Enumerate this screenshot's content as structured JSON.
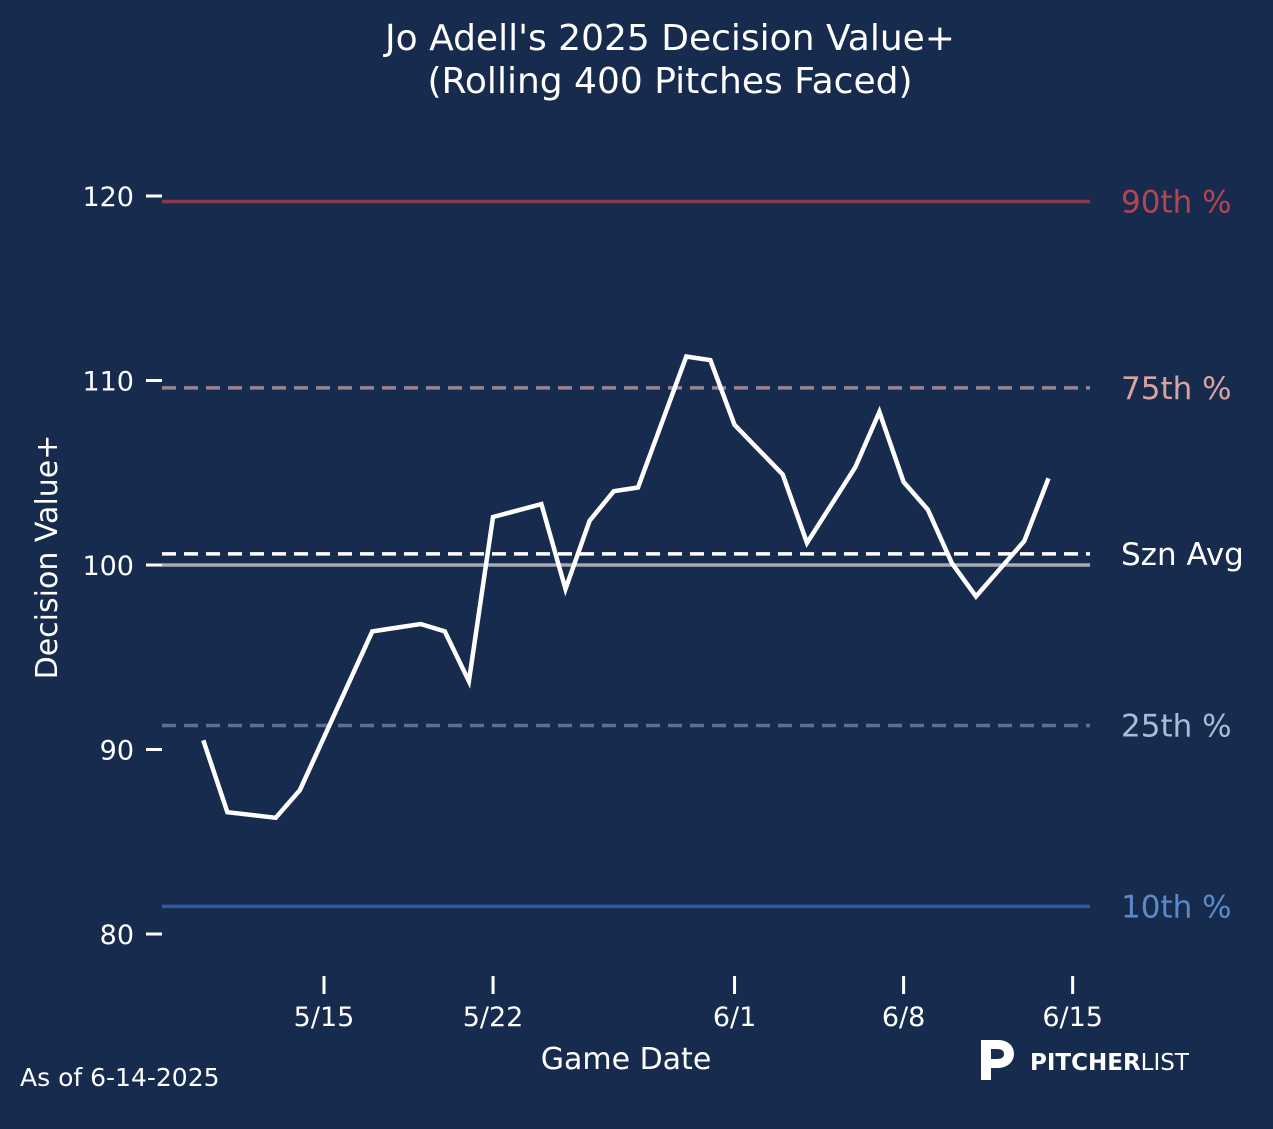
{
  "colors": {
    "background": "#172b4f",
    "line": "#ffffff",
    "p90": "#8c3a4a",
    "p90_label": "#b5444f",
    "p75": "#9a8590",
    "p75_label": "#d9a3a0",
    "p25": "#5c6f92",
    "p25_label": "#a9bbd6",
    "p10": "#2f5b9e",
    "p10_label": "#5b8ac7",
    "baseline": "#a5aab4",
    "szn_avg": "#ffffff"
  },
  "footer": {
    "as_of": "As of 6-14-2025",
    "logo_text_bold": "PITCHER",
    "logo_text_light": "LIST",
    "logo_mark_icon": "pitcherlist-p-icon"
  },
  "chart_data": {
    "type": "line",
    "title": "Jo Adell's 2025 Decision Value+",
    "subtitle": "(Rolling 400 Pitches Faced)",
    "xlabel": "Game Date",
    "ylabel": "Decision Value+",
    "ylim": [
      78,
      122
    ],
    "xlim": [
      "2025-05-08",
      "2025-06-15"
    ],
    "grid": false,
    "yticks": [
      80,
      90,
      100,
      110,
      120
    ],
    "xticks": [
      {
        "date": "2025-05-15",
        "label": "5/15"
      },
      {
        "date": "2025-05-22",
        "label": "5/22"
      },
      {
        "date": "2025-06-01",
        "label": "6/1"
      },
      {
        "date": "2025-06-08",
        "label": "6/8"
      },
      {
        "date": "2025-06-15",
        "label": "6/15"
      }
    ],
    "reference_lines": [
      {
        "label": "90th %",
        "value": 119.7,
        "style": "solid",
        "color_key": "p90",
        "label_color_key": "p90_label"
      },
      {
        "label": "75th %",
        "value": 109.6,
        "style": "dashed",
        "color_key": "p75",
        "label_color_key": "p75_label"
      },
      {
        "label": "Szn Avg",
        "value": 100.6,
        "style": "dashed",
        "color_key": "szn_avg",
        "label_color_key": "szn_avg"
      },
      {
        "label": "",
        "value": 100.0,
        "style": "solid",
        "color_key": "baseline",
        "label_color_key": "baseline"
      },
      {
        "label": "25th %",
        "value": 91.3,
        "style": "dashed",
        "color_key": "p25",
        "label_color_key": "p25_label"
      },
      {
        "label": "10th %",
        "value": 81.5,
        "style": "solid",
        "color_key": "p10",
        "label_color_key": "p10_label"
      }
    ],
    "series": [
      {
        "name": "",
        "points": [
          {
            "x": "2025-05-10",
            "y": 90.5
          },
          {
            "x": "2025-05-11",
            "y": 86.6
          },
          {
            "x": "2025-05-13",
            "y": 86.3
          },
          {
            "x": "2025-05-14",
            "y": 87.8
          },
          {
            "x": "2025-05-17",
            "y": 96.4
          },
          {
            "x": "2025-05-19",
            "y": 96.8
          },
          {
            "x": "2025-05-20",
            "y": 96.4
          },
          {
            "x": "2025-05-21",
            "y": 93.7
          },
          {
            "x": "2025-05-22",
            "y": 102.6
          },
          {
            "x": "2025-05-24",
            "y": 103.3
          },
          {
            "x": "2025-05-25",
            "y": 98.7
          },
          {
            "x": "2025-05-26",
            "y": 102.4
          },
          {
            "x": "2025-05-27",
            "y": 104.0
          },
          {
            "x": "2025-05-28",
            "y": 104.2
          },
          {
            "x": "2025-05-30",
            "y": 111.3
          },
          {
            "x": "2025-05-31",
            "y": 111.1
          },
          {
            "x": "2025-06-01",
            "y": 107.6
          },
          {
            "x": "2025-06-03",
            "y": 104.9
          },
          {
            "x": "2025-06-04",
            "y": 101.2
          },
          {
            "x": "2025-06-06",
            "y": 105.3
          },
          {
            "x": "2025-06-07",
            "y": 108.3
          },
          {
            "x": "2025-06-08",
            "y": 104.5
          },
          {
            "x": "2025-06-09",
            "y": 103.0
          },
          {
            "x": "2025-06-10",
            "y": 100.1
          },
          {
            "x": "2025-06-11",
            "y": 98.3
          },
          {
            "x": "2025-06-13",
            "y": 101.3
          },
          {
            "x": "2025-06-14",
            "y": 104.7
          }
        ]
      }
    ]
  }
}
